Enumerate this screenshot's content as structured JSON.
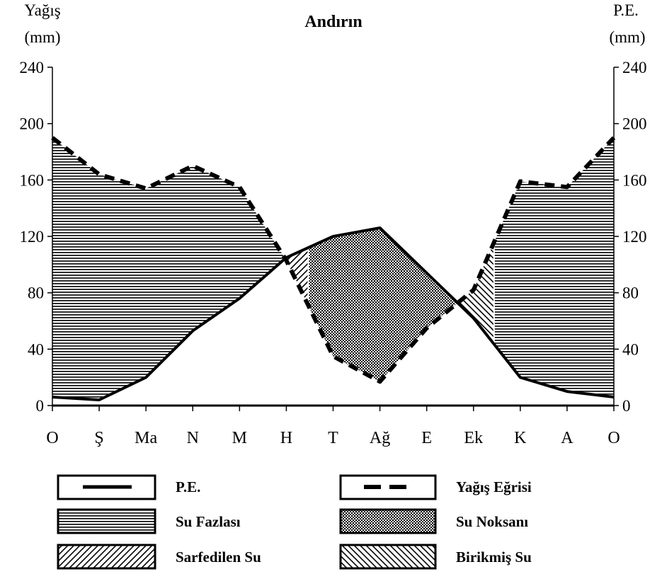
{
  "chart_data": {
    "type": "area",
    "title": "Andırın",
    "y_left_label": [
      "Yağış",
      "(mm)"
    ],
    "y_right_label": [
      "P.E.",
      "(mm)"
    ],
    "categories": [
      "O",
      "Ş",
      "Ma",
      "N",
      "M",
      "H",
      "T",
      "Ağ",
      "E",
      "Ek",
      "K",
      "A",
      "O"
    ],
    "ylim": [
      0,
      240
    ],
    "yticks": [
      0,
      40,
      80,
      120,
      160,
      200,
      240
    ],
    "series": [
      {
        "name": "P.E.",
        "values": [
          6,
          4,
          20,
          53,
          76,
          105,
          120,
          126,
          94,
          62,
          20,
          10,
          6
        ],
        "style": "solid"
      },
      {
        "name": "Yağış Eğrisi",
        "values": [
          190,
          164,
          154,
          170,
          155,
          103,
          35,
          17,
          55,
          82,
          159,
          155,
          190
        ],
        "style": "dashed"
      }
    ],
    "periods": {
      "birikmis_su_interval": [
        "Ek",
        "K"
      ],
      "sarfedilen_su_interval": [
        "H",
        "T"
      ]
    },
    "legend": [
      {
        "key": "pe",
        "label": "P.E."
      },
      {
        "key": "yagis",
        "label": "Yağış Eğrisi"
      },
      {
        "key": "fazla",
        "label": "Su Fazlası"
      },
      {
        "key": "noksan",
        "label": "Su Noksanı"
      },
      {
        "key": "sarf",
        "label": "Sarfedilen Su"
      },
      {
        "key": "birikmis",
        "label": "Birikmiş Su"
      }
    ],
    "legend_placement": "bottom",
    "grid": false
  }
}
